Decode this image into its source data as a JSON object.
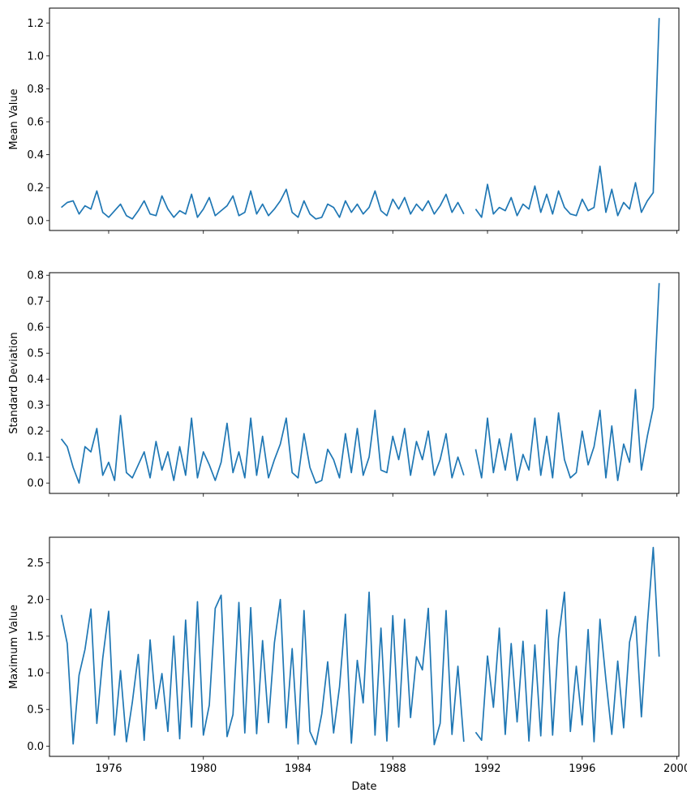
{
  "x_axis_label": "Date",
  "x_tick_labels": [
    "1976",
    "1980",
    "1984",
    "1988",
    "1992",
    "1996",
    "2000"
  ],
  "series_color": "#1f77b4",
  "chart_data": [
    {
      "type": "line",
      "ylabel": "Mean Value",
      "xlabel": "",
      "xlim": [
        "1973-07",
        "2000-02"
      ],
      "ylim": [
        -0.06,
        1.29
      ],
      "y_ticks": [
        "0.0",
        "0.2",
        "0.4",
        "0.6",
        "0.8",
        "1.0",
        "1.2"
      ],
      "grid": false,
      "x": [
        "1974-01",
        "1974-04",
        "1974-07",
        "1974-10",
        "1975-01",
        "1975-04",
        "1975-07",
        "1975-10",
        "1976-01",
        "1976-04",
        "1976-07",
        "1976-10",
        "1977-01",
        "1977-04",
        "1977-07",
        "1977-10",
        "1978-01",
        "1978-04",
        "1978-07",
        "1978-10",
        "1979-01",
        "1979-04",
        "1979-07",
        "1979-10",
        "1980-01",
        "1980-04",
        "1980-07",
        "1980-10",
        "1981-01",
        "1981-04",
        "1981-07",
        "1981-10",
        "1982-01",
        "1982-04",
        "1982-07",
        "1982-10",
        "1983-01",
        "1983-04",
        "1983-07",
        "1983-10",
        "1984-01",
        "1984-04",
        "1984-07",
        "1984-10",
        "1985-01",
        "1985-04",
        "1985-07",
        "1985-10",
        "1986-01",
        "1986-04",
        "1986-07",
        "1986-10",
        "1987-01",
        "1987-04",
        "1987-07",
        "1987-10",
        "1988-01",
        "1988-04",
        "1988-07",
        "1988-10",
        "1989-01",
        "1989-04",
        "1989-07",
        "1989-10",
        "1990-01",
        "1990-04",
        "1990-07",
        "1990-10",
        "1991-01",
        "1991-04",
        "1991-07",
        "1991-10",
        "1992-01",
        "1992-04",
        "1992-07",
        "1992-10",
        "1993-01",
        "1993-04",
        "1993-07",
        "1993-10",
        "1994-01",
        "1994-04",
        "1994-07",
        "1994-10",
        "1995-01",
        "1995-04",
        "1995-07",
        "1995-10",
        "1996-01",
        "1996-04",
        "1996-07",
        "1996-10",
        "1997-01",
        "1997-04",
        "1997-07",
        "1997-10",
        "1998-01",
        "1998-04",
        "1998-07",
        "1998-10",
        "1999-01",
        "1999-04"
      ],
      "values": [
        0.08,
        0.11,
        0.12,
        0.04,
        0.09,
        0.07,
        0.18,
        0.05,
        0.02,
        0.06,
        0.1,
        0.03,
        0.01,
        0.06,
        0.12,
        0.04,
        0.03,
        0.15,
        0.07,
        0.02,
        0.06,
        0.04,
        0.16,
        0.02,
        0.07,
        0.14,
        0.03,
        0.06,
        0.09,
        0.15,
        0.03,
        0.05,
        0.18,
        0.04,
        0.1,
        0.03,
        0.07,
        0.12,
        0.19,
        0.05,
        0.02,
        0.12,
        0.04,
        0.01,
        0.02,
        0.1,
        0.08,
        0.02,
        0.12,
        0.05,
        0.1,
        0.04,
        0.08,
        0.18,
        0.06,
        0.03,
        0.13,
        0.07,
        0.14,
        0.04,
        0.1,
        0.06,
        0.12,
        0.04,
        0.09,
        0.16,
        0.05,
        0.11,
        0.04,
        null,
        0.07,
        0.02,
        0.22,
        0.04,
        0.08,
        0.06,
        0.14,
        0.03,
        0.1,
        0.07,
        0.21,
        0.05,
        0.16,
        0.04,
        0.18,
        0.08,
        0.04,
        0.03,
        0.13,
        0.06,
        0.08,
        0.33,
        0.05,
        0.19,
        0.03,
        0.11,
        0.07,
        0.23,
        0.05,
        0.12,
        0.17,
        1.23
      ]
    },
    {
      "type": "line",
      "ylabel": "Standard Deviation",
      "xlabel": "",
      "xlim": [
        "1973-07",
        "2000-02"
      ],
      "ylim": [
        -0.04,
        0.81
      ],
      "y_ticks": [
        "0.0",
        "0.1",
        "0.2",
        "0.3",
        "0.4",
        "0.5",
        "0.6",
        "0.7",
        "0.8"
      ],
      "grid": false,
      "x": [
        "1974-01",
        "1974-04",
        "1974-07",
        "1974-10",
        "1975-01",
        "1975-04",
        "1975-07",
        "1975-10",
        "1976-01",
        "1976-04",
        "1976-07",
        "1976-10",
        "1977-01",
        "1977-04",
        "1977-07",
        "1977-10",
        "1978-01",
        "1978-04",
        "1978-07",
        "1978-10",
        "1979-01",
        "1979-04",
        "1979-07",
        "1979-10",
        "1980-01",
        "1980-04",
        "1980-07",
        "1980-10",
        "1981-01",
        "1981-04",
        "1981-07",
        "1981-10",
        "1982-01",
        "1982-04",
        "1982-07",
        "1982-10",
        "1983-01",
        "1983-04",
        "1983-07",
        "1983-10",
        "1984-01",
        "1984-04",
        "1984-07",
        "1984-10",
        "1985-01",
        "1985-04",
        "1985-07",
        "1985-10",
        "1986-01",
        "1986-04",
        "1986-07",
        "1986-10",
        "1987-01",
        "1987-04",
        "1987-07",
        "1987-10",
        "1988-01",
        "1988-04",
        "1988-07",
        "1988-10",
        "1989-01",
        "1989-04",
        "1989-07",
        "1989-10",
        "1990-01",
        "1990-04",
        "1990-07",
        "1990-10",
        "1991-01",
        "1991-04",
        "1991-07",
        "1991-10",
        "1992-01",
        "1992-04",
        "1992-07",
        "1992-10",
        "1993-01",
        "1993-04",
        "1993-07",
        "1993-10",
        "1994-01",
        "1994-04",
        "1994-07",
        "1994-10",
        "1995-01",
        "1995-04",
        "1995-07",
        "1995-10",
        "1996-01",
        "1996-04",
        "1996-07",
        "1996-10",
        "1997-01",
        "1997-04",
        "1997-07",
        "1997-10",
        "1998-01",
        "1998-04",
        "1998-07",
        "1998-10",
        "1999-01",
        "1999-04"
      ],
      "values": [
        0.17,
        0.14,
        0.06,
        0.0,
        0.14,
        0.12,
        0.21,
        0.03,
        0.08,
        0.01,
        0.26,
        0.04,
        0.02,
        0.07,
        0.12,
        0.02,
        0.16,
        0.05,
        0.12,
        0.01,
        0.14,
        0.03,
        0.25,
        0.02,
        0.12,
        0.07,
        0.01,
        0.08,
        0.23,
        0.04,
        0.12,
        0.02,
        0.25,
        0.03,
        0.18,
        0.02,
        0.09,
        0.15,
        0.25,
        0.04,
        0.02,
        0.19,
        0.06,
        0.0,
        0.01,
        0.13,
        0.09,
        0.02,
        0.19,
        0.04,
        0.21,
        0.03,
        0.1,
        0.28,
        0.05,
        0.04,
        0.18,
        0.09,
        0.21,
        0.03,
        0.16,
        0.09,
        0.2,
        0.03,
        0.09,
        0.19,
        0.02,
        0.1,
        0.03,
        null,
        0.13,
        0.02,
        0.25,
        0.04,
        0.17,
        0.05,
        0.19,
        0.01,
        0.11,
        0.05,
        0.25,
        0.03,
        0.18,
        0.02,
        0.27,
        0.09,
        0.02,
        0.04,
        0.2,
        0.07,
        0.14,
        0.28,
        0.02,
        0.22,
        0.01,
        0.15,
        0.08,
        0.36,
        0.05,
        0.18,
        0.29,
        0.77
      ]
    },
    {
      "type": "line",
      "ylabel": "Maximum Value",
      "xlabel": "Date",
      "xlim": [
        "1973-07",
        "2000-02"
      ],
      "ylim": [
        -0.14,
        2.85
      ],
      "y_ticks": [
        "0.0",
        "0.5",
        "1.0",
        "1.5",
        "2.0",
        "2.5"
      ],
      "grid": false,
      "x": [
        "1974-01",
        "1974-04",
        "1974-07",
        "1974-10",
        "1975-01",
        "1975-04",
        "1975-07",
        "1975-10",
        "1976-01",
        "1976-04",
        "1976-07",
        "1976-10",
        "1977-01",
        "1977-04",
        "1977-07",
        "1977-10",
        "1978-01",
        "1978-04",
        "1978-07",
        "1978-10",
        "1979-01",
        "1979-04",
        "1979-07",
        "1979-10",
        "1980-01",
        "1980-04",
        "1980-07",
        "1980-10",
        "1981-01",
        "1981-04",
        "1981-07",
        "1981-10",
        "1982-01",
        "1982-04",
        "1982-07",
        "1982-10",
        "1983-01",
        "1983-04",
        "1983-07",
        "1983-10",
        "1984-01",
        "1984-04",
        "1984-07",
        "1984-10",
        "1985-01",
        "1985-04",
        "1985-07",
        "1985-10",
        "1986-01",
        "1986-04",
        "1986-07",
        "1986-10",
        "1987-01",
        "1987-04",
        "1987-07",
        "1987-10",
        "1988-01",
        "1988-04",
        "1988-07",
        "1988-10",
        "1989-01",
        "1989-04",
        "1989-07",
        "1989-10",
        "1990-01",
        "1990-04",
        "1990-07",
        "1990-10",
        "1991-01",
        "1991-04",
        "1991-07",
        "1991-10",
        "1992-01",
        "1992-04",
        "1992-07",
        "1992-10",
        "1993-01",
        "1993-04",
        "1993-07",
        "1993-10",
        "1994-01",
        "1994-04",
        "1994-07",
        "1994-10",
        "1995-01",
        "1995-04",
        "1995-07",
        "1995-10",
        "1996-01",
        "1996-04",
        "1996-07",
        "1996-10",
        "1997-01",
        "1997-04",
        "1997-07",
        "1997-10",
        "1998-01",
        "1998-04",
        "1998-07",
        "1998-10",
        "1999-01",
        "1999-04"
      ],
      "values": [
        1.79,
        1.4,
        0.03,
        0.97,
        1.32,
        1.87,
        0.31,
        1.2,
        1.84,
        0.15,
        1.03,
        0.06,
        0.6,
        1.25,
        0.08,
        1.45,
        0.51,
        0.99,
        0.2,
        1.5,
        0.1,
        1.72,
        0.26,
        1.97,
        0.15,
        0.56,
        1.88,
        2.06,
        0.13,
        0.43,
        1.96,
        0.18,
        1.89,
        0.17,
        1.44,
        0.32,
        1.41,
        2.0,
        0.25,
        1.33,
        0.03,
        1.85,
        0.2,
        0.02,
        0.44,
        1.15,
        0.18,
        0.81,
        1.8,
        0.04,
        1.17,
        0.59,
        2.1,
        0.15,
        1.61,
        0.07,
        1.78,
        0.26,
        1.73,
        0.39,
        1.22,
        1.04,
        1.88,
        0.02,
        0.31,
        1.85,
        0.16,
        1.09,
        0.06,
        null,
        0.19,
        0.08,
        1.23,
        0.53,
        1.61,
        0.16,
        1.4,
        0.33,
        1.43,
        0.07,
        1.38,
        0.14,
        1.86,
        0.15,
        1.47,
        2.1,
        0.2,
        1.09,
        0.29,
        1.59,
        0.06,
        1.73,
        0.91,
        0.16,
        1.16,
        0.25,
        1.42,
        1.77,
        0.4,
        1.65,
        2.71,
        1.22
      ]
    }
  ]
}
